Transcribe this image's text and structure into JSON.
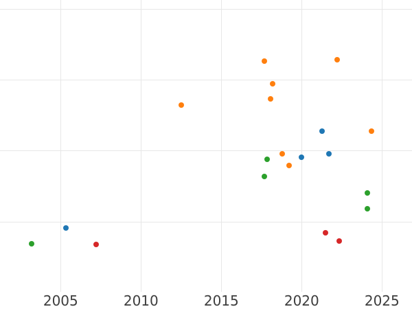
{
  "chart_data": {
    "type": "scatter",
    "title": "",
    "xlabel": "",
    "ylabel": "",
    "grid": true,
    "legend": null,
    "x_ticks": [
      2005,
      2010,
      2015,
      2020,
      2025
    ],
    "x_range": [
      2001.2,
      2026.9
    ],
    "y_tick_labels_visible": false,
    "y_unit_note": "y measured in gridline units; 0 = one gridline below lowest visible line, gridlines drawn at units 1-4",
    "y_gridline_units": [
      1,
      2,
      3,
      4
    ],
    "y_range_units": [
      -0.23,
      4.13
    ],
    "colors": {
      "blue": "#1f77b4",
      "orange": "#ff7f0e",
      "green": "#2ca02c",
      "red": "#d62728",
      "gridline": "#e7e7e7",
      "tick_label": "#3d3d3d",
      "background": "#ffffff"
    },
    "series": [
      {
        "name": "blue",
        "color": "#1f77b4",
        "points": [
          {
            "x": 2005.33,
            "y": 0.91
          },
          {
            "x": 2020.0,
            "y": 1.91
          },
          {
            "x": 2021.27,
            "y": 2.28
          },
          {
            "x": 2021.7,
            "y": 1.96
          }
        ]
      },
      {
        "name": "orange",
        "color": "#ff7f0e",
        "points": [
          {
            "x": 2012.5,
            "y": 2.65
          },
          {
            "x": 2017.7,
            "y": 3.27
          },
          {
            "x": 2018.05,
            "y": 2.73
          },
          {
            "x": 2018.2,
            "y": 2.95
          },
          {
            "x": 2018.8,
            "y": 1.96
          },
          {
            "x": 2019.2,
            "y": 1.8
          },
          {
            "x": 2022.2,
            "y": 3.29
          },
          {
            "x": 2024.35,
            "y": 2.28
          }
        ]
      },
      {
        "name": "green",
        "color": "#2ca02c",
        "points": [
          {
            "x": 2003.2,
            "y": 0.69
          },
          {
            "x": 2017.7,
            "y": 1.64
          },
          {
            "x": 2017.85,
            "y": 1.88
          },
          {
            "x": 2024.07,
            "y": 1.41
          },
          {
            "x": 2024.07,
            "y": 1.19
          }
        ]
      },
      {
        "name": "red",
        "color": "#d62728",
        "points": [
          {
            "x": 2007.2,
            "y": 0.68
          },
          {
            "x": 2021.5,
            "y": 0.85
          },
          {
            "x": 2022.35,
            "y": 0.73
          }
        ]
      }
    ]
  }
}
